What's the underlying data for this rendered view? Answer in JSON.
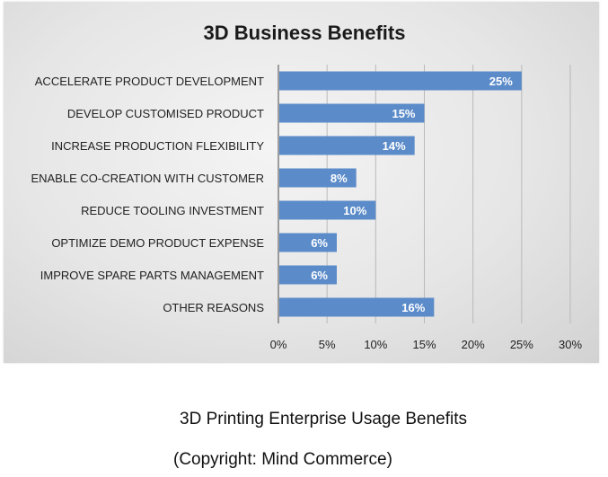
{
  "chart_data": {
    "type": "bar",
    "orientation": "horizontal",
    "title": "3D Business Benefits",
    "categories": [
      "ACCELERATE PRODUCT DEVELOPMENT",
      "DEVELOP CUSTOMISED PRODUCT",
      "INCREASE PRODUCTION FLEXIBILITY",
      "ENABLE CO-CREATION WITH CUSTOMER",
      "REDUCE TOOLING INVESTMENT",
      "OPTIMIZE DEMO PRODUCT EXPENSE",
      "IMPROVE SPARE PARTS MANAGEMENT",
      "OTHER REASONS"
    ],
    "values": [
      25,
      15,
      14,
      8,
      10,
      6,
      6,
      16
    ],
    "data_labels": [
      "25%",
      "15%",
      "14%",
      "8%",
      "10%",
      "6%",
      "6%",
      "16%"
    ],
    "x_ticks": [
      0,
      5,
      10,
      15,
      20,
      25,
      30
    ],
    "x_tick_labels": [
      "0%",
      "5%",
      "10%",
      "15%",
      "20%",
      "25%",
      "30%"
    ],
    "xlim": [
      0,
      30
    ],
    "grid": "vertical",
    "bar_color": "#5b8bc9"
  },
  "caption": {
    "title": "3D Printing Enterprise Usage Benefits",
    "copyright": "(Copyright: Mind Commerce)"
  }
}
